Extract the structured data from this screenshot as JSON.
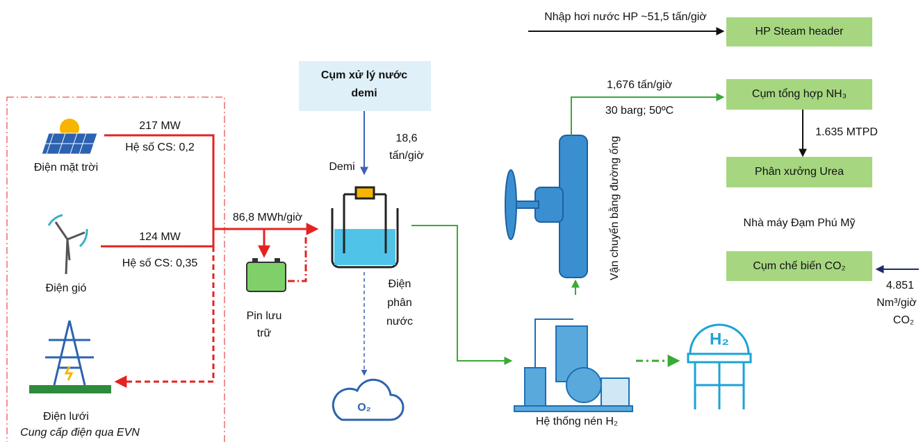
{
  "sources": {
    "solar": {
      "label": "Điện mặt trời",
      "capacity": "217 MW",
      "factor": "Hệ số CS: 0,2"
    },
    "wind": {
      "label": "Điện gió",
      "capacity": "124 MW",
      "factor": "Hệ số CS: 0,35"
    },
    "grid": {
      "label": "Điện lưới",
      "note": "Cung cấp điện qua EVN"
    }
  },
  "power_flow": "86,8 MWh/giờ",
  "battery": {
    "label": [
      "Pin lưu",
      "trữ"
    ]
  },
  "demi_unit": {
    "label": [
      "Cụm xử lý nước",
      "demi"
    ],
    "flow": [
      "18,6",
      "tấn/giờ"
    ],
    "product": "Demi"
  },
  "electrolysis": {
    "label": [
      "Điện",
      "phân",
      "nước"
    ]
  },
  "oxygen": "O₂",
  "compression": {
    "label": "Hệ thống nén H₂"
  },
  "hydrogen": "H₂",
  "pipeline": {
    "label": "Vận chuyển bằng đường ống",
    "flow": "1,676 tấn/giờ",
    "conditions": "30 barg; 50ºC"
  },
  "plant": {
    "name": "Nhà máy Đạm Phú Mỹ",
    "steam_input": "Nhập hơi nước HP ~51,5 tấn/giờ",
    "units": [
      "HP Steam header",
      "Cụm tổng hợp NH₃",
      "Phân xưởng Urea",
      "Cụm chế biến CO₂"
    ],
    "nh3_output": "1.635 MTPD",
    "co2_input": [
      "4.851",
      "Nm³/giờ",
      "CO₂"
    ]
  }
}
